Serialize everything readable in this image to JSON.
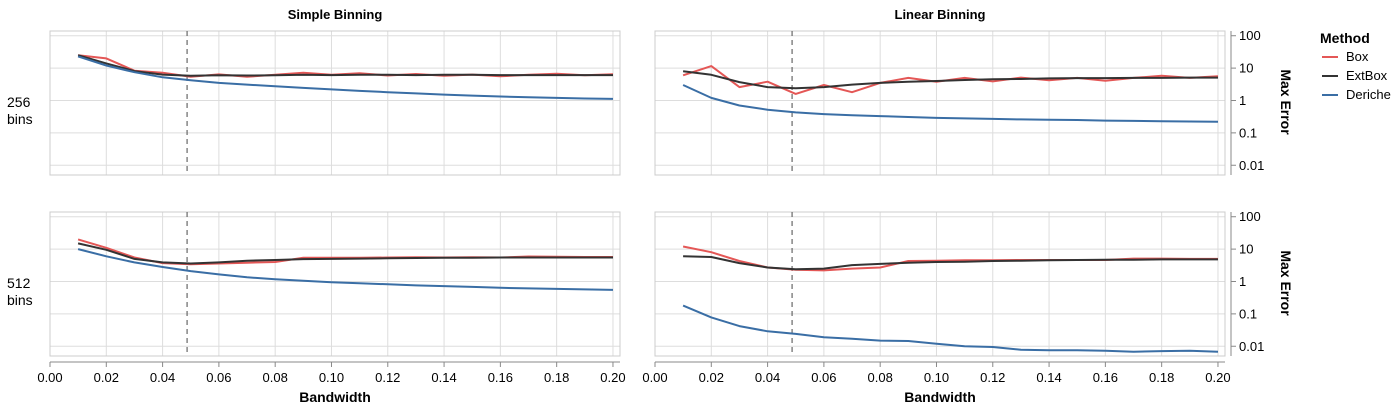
{
  "chart_data": {
    "type": "line",
    "x_label": "Bandwidth",
    "y_label": "Max Error",
    "y_scale": "log",
    "y_ticks": [
      "100",
      "10",
      "1",
      "0.1",
      "0.01"
    ],
    "y_tick_values": [
      100,
      10,
      1,
      0.1,
      0.01
    ],
    "x_ticks": [
      "0.00",
      "0.02",
      "0.04",
      "0.06",
      "0.08",
      "0.10",
      "0.12",
      "0.14",
      "0.16",
      "0.18",
      "0.20"
    ],
    "x_tick_values": [
      0,
      0.02,
      0.04,
      0.06,
      0.08,
      0.1,
      0.12,
      0.14,
      0.16,
      0.18,
      0.2
    ],
    "xlim": [
      0,
      0.2025
    ],
    "ylim": [
      0.005,
      140
    ],
    "grid": true,
    "reference_line_x": 0.0487,
    "columns": [
      "Simple Binning",
      "Linear Binning"
    ],
    "rows": [
      {
        "label_line1": "256",
        "label_line2": "bins"
      },
      {
        "label_line1": "512",
        "label_line2": "bins"
      }
    ],
    "legend": {
      "title": "Method",
      "position": "top-right",
      "items": [
        {
          "name": "Box",
          "color": "#e45756"
        },
        {
          "name": "ExtBox",
          "color": "#333333"
        },
        {
          "name": "Deriche",
          "color": "#3a6ea5"
        }
      ]
    },
    "x": [
      0.01,
      0.02,
      0.03,
      0.04,
      0.05,
      0.06,
      0.07,
      0.08,
      0.09,
      0.1,
      0.11,
      0.12,
      0.13,
      0.14,
      0.15,
      0.16,
      0.17,
      0.18,
      0.19,
      0.2
    ],
    "panels": [
      {
        "row": "256 bins",
        "column": "Simple Binning",
        "series": [
          {
            "name": "Box",
            "values": [
              25,
              20,
              8.3,
              7.2,
              5.4,
              6.4,
              5.4,
              6.2,
              7.2,
              6.2,
              6.9,
              5.9,
              6.6,
              5.8,
              6.3,
              5.6,
              6.2,
              6.7,
              6.0,
              6.5
            ]
          },
          {
            "name": "ExtBox",
            "values": [
              25,
              14,
              8.1,
              6.3,
              5.8,
              6.0,
              5.9,
              6.0,
              6.2,
              6.1,
              6.2,
              6.2,
              6.1,
              6.2,
              6.2,
              6.1,
              6.1,
              6.1,
              6.1,
              6.1
            ]
          },
          {
            "name": "Deriche",
            "values": [
              23,
              12,
              7.5,
              5.2,
              4.2,
              3.5,
              3.1,
              2.75,
              2.45,
              2.2,
              1.98,
              1.8,
              1.65,
              1.52,
              1.42,
              1.33,
              1.26,
              1.2,
              1.15,
              1.12
            ]
          }
        ]
      },
      {
        "row": "256 bins",
        "column": "Linear Binning",
        "series": [
          {
            "name": "Box",
            "values": [
              6.0,
              11.5,
              2.6,
              3.8,
              1.6,
              3.0,
              1.8,
              3.5,
              5.0,
              3.8,
              5.0,
              3.9,
              5.1,
              4.2,
              5.0,
              4.1,
              5.0,
              5.8,
              5.0,
              5.6
            ]
          },
          {
            "name": "ExtBox",
            "values": [
              8.0,
              6.2,
              3.7,
              2.6,
              2.4,
              2.6,
              3.1,
              3.5,
              3.8,
              4.0,
              4.3,
              4.5,
              4.6,
              4.8,
              4.9,
              4.9,
              5.0,
              5.0,
              5.1,
              5.1
            ]
          },
          {
            "name": "Deriche",
            "values": [
              3.0,
              1.2,
              0.7,
              0.52,
              0.43,
              0.38,
              0.35,
              0.33,
              0.31,
              0.29,
              0.28,
              0.27,
              0.26,
              0.255,
              0.25,
              0.24,
              0.235,
              0.23,
              0.225,
              0.22
            ]
          }
        ]
      },
      {
        "row": "512 bins",
        "column": "Simple Binning",
        "series": [
          {
            "name": "Box",
            "values": [
              20,
              11,
              5.5,
              3.7,
              3.4,
              3.6,
              3.8,
              4.0,
              5.4,
              5.4,
              5.4,
              5.5,
              5.6,
              5.5,
              5.6,
              5.5,
              5.9,
              5.8,
              5.7,
              5.7
            ]
          },
          {
            "name": "ExtBox",
            "values": [
              15,
              9.5,
              5.0,
              3.9,
              3.6,
              3.9,
              4.4,
              4.6,
              4.9,
              5.0,
              5.1,
              5.2,
              5.3,
              5.4,
              5.4,
              5.5,
              5.5,
              5.5,
              5.5,
              5.5
            ]
          },
          {
            "name": "Deriche",
            "values": [
              10,
              6.0,
              3.9,
              2.8,
              2.1,
              1.65,
              1.35,
              1.18,
              1.05,
              0.95,
              0.88,
              0.82,
              0.76,
              0.72,
              0.68,
              0.64,
              0.61,
              0.59,
              0.57,
              0.55
            ]
          }
        ]
      },
      {
        "row": "512 bins",
        "column": "Linear Binning",
        "series": [
          {
            "name": "Box",
            "values": [
              12,
              8.0,
              4.3,
              2.7,
              2.3,
              2.2,
              2.5,
              2.7,
              4.3,
              4.4,
              4.5,
              4.5,
              4.6,
              4.6,
              4.6,
              4.6,
              5.1,
              5.1,
              5.0,
              5.0
            ]
          },
          {
            "name": "ExtBox",
            "values": [
              6.0,
              5.7,
              3.7,
              2.7,
              2.4,
              2.5,
              3.2,
              3.5,
              3.8,
              4.0,
              4.1,
              4.3,
              4.4,
              4.5,
              4.6,
              4.7,
              4.7,
              4.8,
              4.8,
              4.8
            ]
          },
          {
            "name": "Deriche",
            "values": [
              0.18,
              0.078,
              0.042,
              0.029,
              0.024,
              0.019,
              0.017,
              0.015,
              0.0145,
              0.012,
              0.01,
              0.0095,
              0.0078,
              0.0075,
              0.0075,
              0.0073,
              0.0068,
              0.0071,
              0.0073,
              0.0068
            ]
          }
        ]
      }
    ]
  }
}
